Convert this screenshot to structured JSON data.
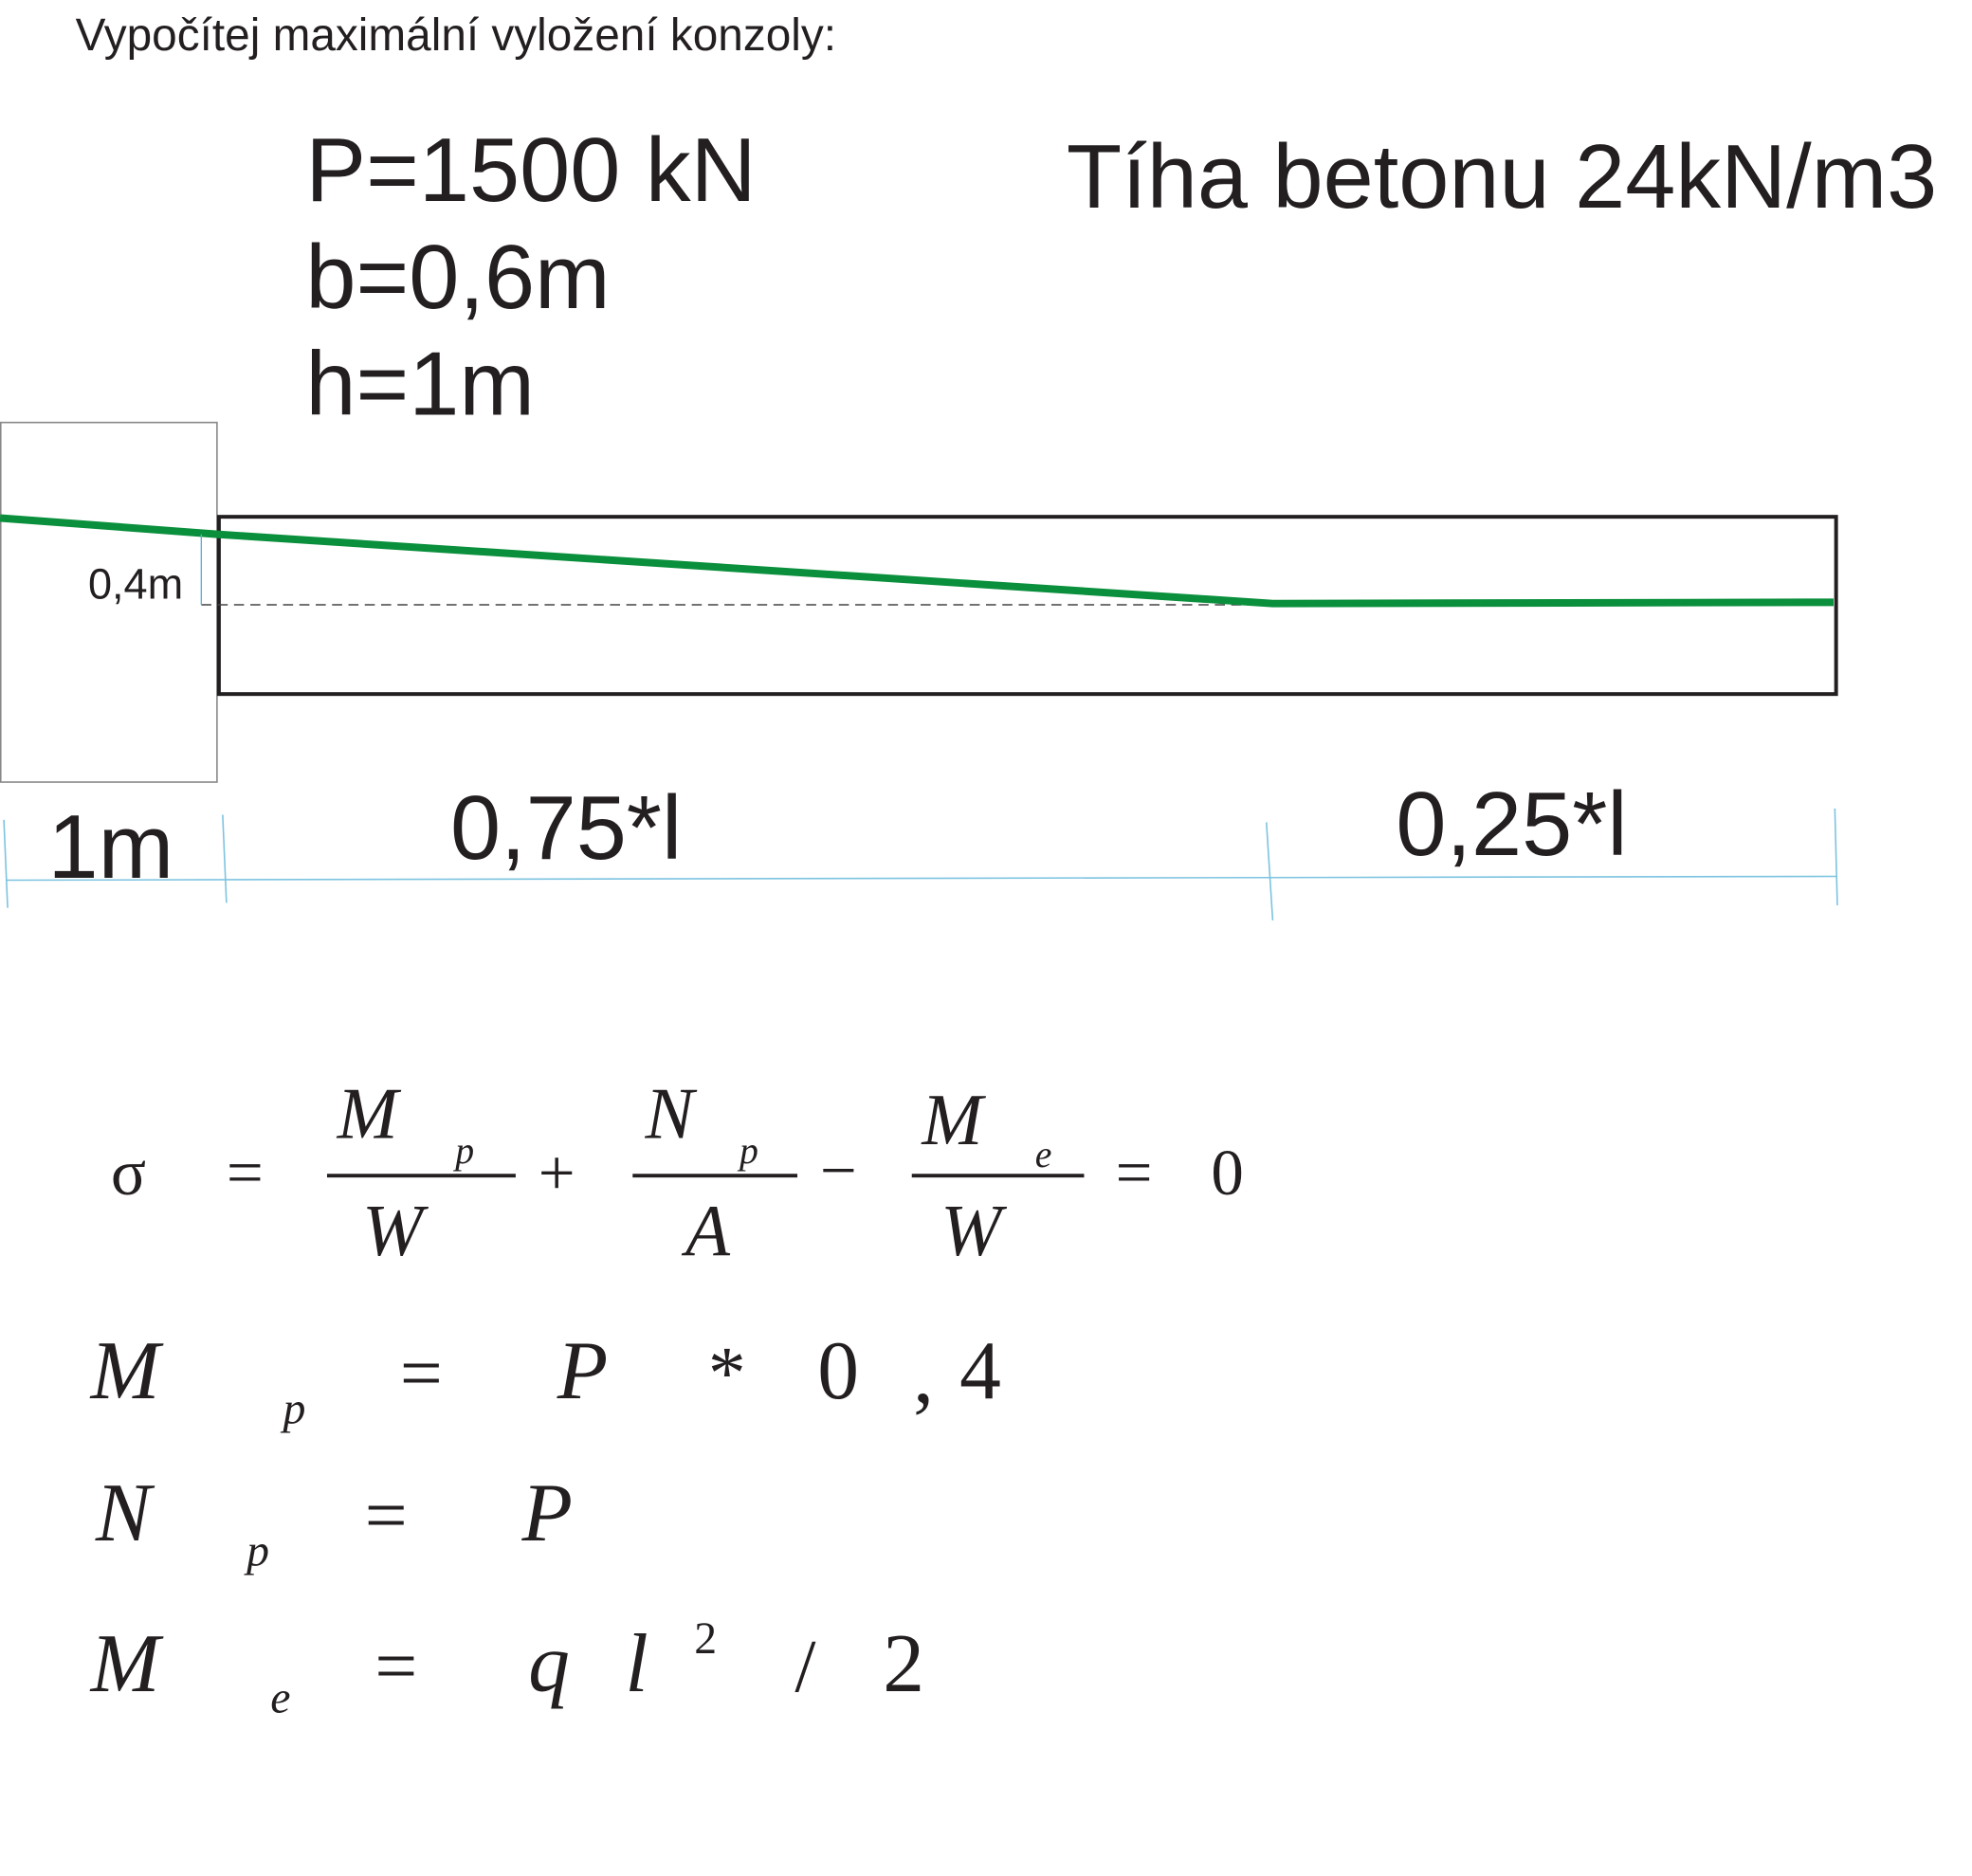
{
  "title": "Vypočítej maximální vyložení konzoly:",
  "parameters": [
    "P=1500 kN",
    "b=0,6m",
    "h=1m"
  ],
  "concrete_weight": "Tíha betonu 24kN/m3",
  "dimensions": {
    "eccentricity": "0,4m",
    "support": "1m",
    "span_a": "0,75*l",
    "span_b": "0,25*l"
  },
  "equations": [
    [
      "σ",
      "=",
      "M",
      "p",
      "W",
      "+",
      "N",
      "p",
      "A",
      "−",
      "M",
      "e",
      "W",
      "=",
      "0"
    ],
    [
      "M",
      "p",
      "=",
      "P",
      "*",
      "0",
      ",",
      "4"
    ],
    [
      "N",
      "p",
      "=",
      "P"
    ],
    [
      "M",
      "e",
      "=",
      "q",
      "l",
      "2",
      "/",
      "2"
    ]
  ]
}
